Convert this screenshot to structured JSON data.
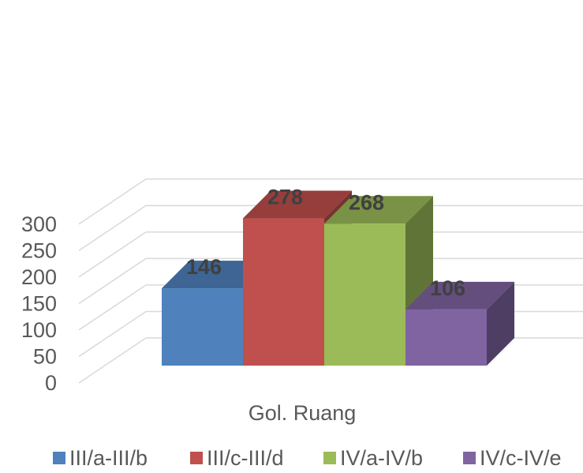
{
  "chart_data": {
    "type": "bar",
    "style": "3d-clustered-column",
    "categories": [
      "Gol. Ruang"
    ],
    "series": [
      {
        "name": "III/a-III/b",
        "values": [
          146
        ],
        "color": "#4F81BD"
      },
      {
        "name": "III/c-III/d",
        "values": [
          278
        ],
        "color": "#C0504D"
      },
      {
        "name": "IV/a-IV/b",
        "values": [
          268
        ],
        "color": "#9BBB59"
      },
      {
        "name": "IV/c-IV/e",
        "values": [
          106
        ],
        "color": "#8064A2"
      }
    ],
    "y_ticks": [
      "0",
      "50",
      "100",
      "150",
      "200",
      "250",
      "300"
    ],
    "ylim": [
      0,
      300
    ],
    "grid": true,
    "legend": "bottom",
    "data_labels": [
      "146",
      "278",
      "268",
      "106"
    ]
  }
}
